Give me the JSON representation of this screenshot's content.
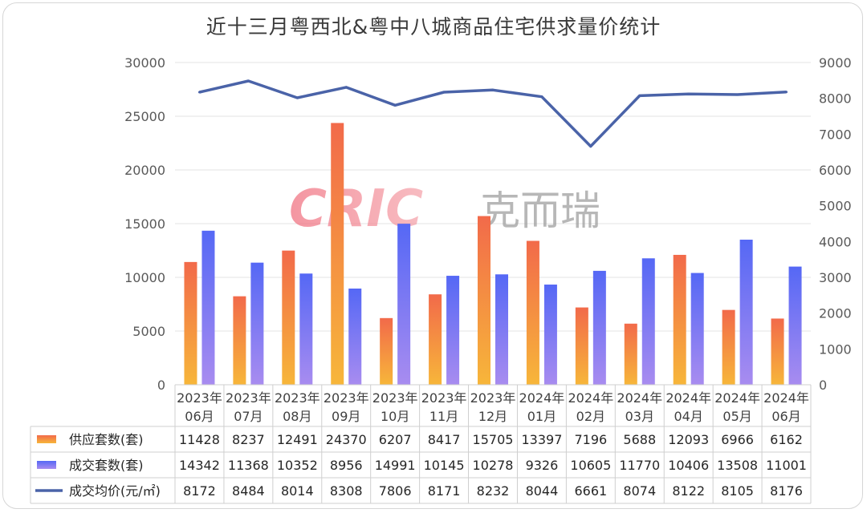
{
  "title": "近十三月粤西北&粤中八城商品住宅供求量价统计",
  "watermark": {
    "latin": "CRIC",
    "chinese": "克而瑞"
  },
  "chart_data": {
    "type": "bar",
    "categories": [
      [
        "2023年",
        "06月"
      ],
      [
        "2023年",
        "07月"
      ],
      [
        "2023年",
        "08月"
      ],
      [
        "2023年",
        "09月"
      ],
      [
        "2023年",
        "10月"
      ],
      [
        "2023年",
        "11月"
      ],
      [
        "2023年",
        "12月"
      ],
      [
        "2024年",
        "01月"
      ],
      [
        "2024年",
        "02月"
      ],
      [
        "2024年",
        "03月"
      ],
      [
        "2024年",
        "04月"
      ],
      [
        "2024年",
        "05月"
      ],
      [
        "2024年",
        "06月"
      ]
    ],
    "series": [
      {
        "name": "供应套数(套)",
        "kind": "bar",
        "axis": "left",
        "color": "#f08a3c",
        "values": [
          11428,
          8237,
          12491,
          24370,
          6207,
          8417,
          15705,
          13397,
          7196,
          5688,
          12093,
          6966,
          6162
        ]
      },
      {
        "name": "成交套数(套)",
        "kind": "bar",
        "axis": "left",
        "color": "#7a7cf5",
        "values": [
          14342,
          11368,
          10352,
          8956,
          14991,
          10145,
          10278,
          9326,
          10605,
          11770,
          10406,
          13508,
          11001
        ]
      },
      {
        "name": "成交均价(元/㎡)",
        "kind": "line",
        "axis": "right",
        "color": "#4a63a8",
        "values": [
          8172,
          8484,
          8014,
          8308,
          7806,
          8171,
          8232,
          8044,
          6661,
          8074,
          8122,
          8105,
          8176
        ]
      }
    ],
    "y_left": {
      "min": 0,
      "max": 30000,
      "ticks": [
        0,
        5000,
        10000,
        15000,
        20000,
        25000,
        30000
      ]
    },
    "y_right": {
      "min": 0,
      "max": 9000,
      "ticks": [
        0,
        1000,
        2000,
        3000,
        4000,
        5000,
        6000,
        7000,
        8000,
        9000
      ]
    },
    "gridlines": true,
    "data_table": true
  }
}
